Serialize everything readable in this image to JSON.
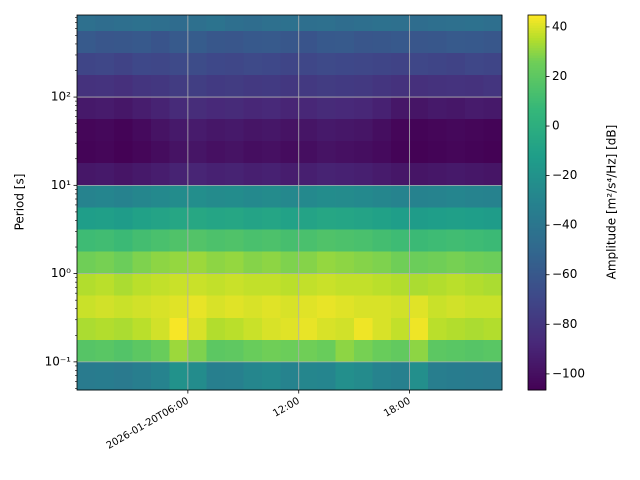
{
  "chart_data": {
    "type": "heatmap",
    "ylabel": "Period [s]",
    "colorbar_label": "Amplitude [m²/s⁴/Hz] [dB]",
    "yscale": "log",
    "grid": true,
    "colormap": "viridis",
    "xlim": [
      0,
      23
    ],
    "xticks": [
      {
        "value": 6,
        "label": "2026-01-20T06:00"
      },
      {
        "value": 12,
        "label": "12:00"
      },
      {
        "value": 18,
        "label": "18:00"
      }
    ],
    "ylim": [
      0.048,
      851
    ],
    "yticks": [
      {
        "value": 0.1,
        "label": "10⁻¹"
      },
      {
        "value": 1,
        "label": "10⁰"
      },
      {
        "value": 10,
        "label": "10¹"
      },
      {
        "value": 100,
        "label": "10²"
      }
    ],
    "clim": [
      -106.5,
      44.8
    ],
    "cticks": [
      {
        "value": -100,
        "label": "−100"
      },
      {
        "value": -80,
        "label": "−80"
      },
      {
        "value": -60,
        "label": "−60"
      },
      {
        "value": -40,
        "label": "−40"
      },
      {
        "value": -20,
        "label": "−20"
      },
      0,
      20,
      40
    ],
    "x_edges": [
      0,
      1,
      2,
      3,
      4,
      5,
      6,
      7,
      8,
      9,
      10,
      11,
      12,
      13,
      14,
      15,
      16,
      17,
      18,
      19,
      20,
      21,
      22,
      23
    ],
    "y_edges": [
      851,
      562,
      316,
      178,
      100,
      56.2,
      31.6,
      17.8,
      10,
      5.62,
      3.16,
      1.78,
      1,
      0.562,
      0.316,
      0.178,
      0.1,
      0.048
    ],
    "z": [
      [
        -44,
        -46,
        -45,
        -43,
        -45,
        -47,
        -44,
        -42,
        -45,
        -46,
        -44,
        -43,
        -45,
        -44,
        -46,
        -45,
        -43,
        -44,
        -46,
        -45,
        -44,
        -43,
        -45
      ],
      [
        -58,
        -61,
        -60,
        -59,
        -62,
        -58,
        -57,
        -60,
        -61,
        -59,
        -58,
        -60,
        -62,
        -59,
        -58,
        -61,
        -60,
        -59,
        -61,
        -60,
        -58,
        -59,
        -60
      ],
      [
        -71,
        -70,
        -72,
        -69,
        -70,
        -68,
        -67,
        -69,
        -70,
        -68,
        -69,
        -71,
        -70,
        -68,
        -69,
        -70,
        -71,
        -72,
        -70,
        -71,
        -72,
        -70,
        -71
      ],
      [
        -82,
        -81,
        -83,
        -80,
        -79,
        -76,
        -75,
        -77,
        -76,
        -78,
        -77,
        -79,
        -78,
        -76,
        -77,
        -78,
        -80,
        -82,
        -83,
        -82,
        -81,
        -82,
        -80
      ],
      [
        -95,
        -94,
        -96,
        -93,
        -90,
        -86,
        -85,
        -87,
        -86,
        -88,
        -87,
        -89,
        -88,
        -86,
        -87,
        -88,
        -91,
        -96,
        -97,
        -95,
        -96,
        -94,
        -95
      ],
      [
        -104,
        -103,
        -105,
        -102,
        -98,
        -95,
        -94,
        -96,
        -95,
        -97,
        -96,
        -98,
        -97,
        -95,
        -96,
        -97,
        -100,
        -104,
        -105,
        -104,
        -103,
        -104,
        -105
      ],
      [
        -105,
        -104,
        -106,
        -104,
        -101,
        -98,
        -97,
        -99,
        -98,
        -100,
        -99,
        -101,
        -100,
        -98,
        -99,
        -100,
        -102,
        -105,
        -106,
        -105,
        -104,
        -105,
        -106
      ],
      [
        -96,
        -95,
        -97,
        -95,
        -93,
        -90,
        -89,
        -91,
        -90,
        -92,
        -91,
        -93,
        -92,
        -90,
        -91,
        -92,
        -94,
        -96,
        -97,
        -96,
        -95,
        -96,
        -97
      ],
      [
        -30,
        -29,
        -31,
        -28,
        -26,
        -24,
        -23,
        -25,
        -24,
        -26,
        -25,
        -27,
        -26,
        -24,
        -25,
        -26,
        -28,
        -30,
        -31,
        -30,
        -29,
        -30,
        -31
      ],
      [
        -12,
        -11,
        -13,
        -10,
        -8,
        -6,
        -5,
        -7,
        -6,
        -8,
        -7,
        -9,
        -8,
        -6,
        -7,
        -8,
        -10,
        -12,
        -13,
        -12,
        -11,
        -12,
        -13
      ],
      [
        10,
        11,
        9,
        12,
        14,
        16,
        17,
        15,
        16,
        14,
        15,
        13,
        14,
        16,
        15,
        14,
        12,
        10,
        9,
        10,
        11,
        10,
        9
      ],
      [
        26,
        27,
        25,
        28,
        30,
        31,
        32,
        30,
        31,
        29,
        30,
        28,
        29,
        31,
        30,
        29,
        28,
        26,
        25,
        26,
        27,
        26,
        25
      ],
      [
        35,
        36,
        34,
        36,
        37,
        38,
        38,
        37,
        38,
        37,
        37,
        36,
        37,
        38,
        37,
        37,
        36,
        35,
        34,
        35,
        36,
        35,
        34
      ],
      [
        38,
        39,
        38,
        39,
        40,
        41,
        42,
        40,
        41,
        40,
        41,
        40,
        41,
        42,
        41,
        40,
        40,
        39,
        41,
        38,
        39,
        38,
        38
      ],
      [
        34,
        35,
        34,
        36,
        39,
        44,
        40,
        35,
        36,
        38,
        40,
        41,
        42,
        40,
        39,
        43,
        40,
        37,
        43,
        36,
        35,
        34,
        35
      ],
      [
        18,
        19,
        17,
        20,
        24,
        32,
        28,
        20,
        21,
        24,
        26,
        25,
        26,
        24,
        30,
        27,
        24,
        22,
        30,
        20,
        19,
        18,
        19
      ],
      [
        -36,
        -35,
        -37,
        -34,
        -30,
        -20,
        -24,
        -33,
        -32,
        -28,
        -26,
        -30,
        -28,
        -29,
        -22,
        -25,
        -30,
        -32,
        -22,
        -34,
        -35,
        -36,
        -37
      ]
    ]
  }
}
